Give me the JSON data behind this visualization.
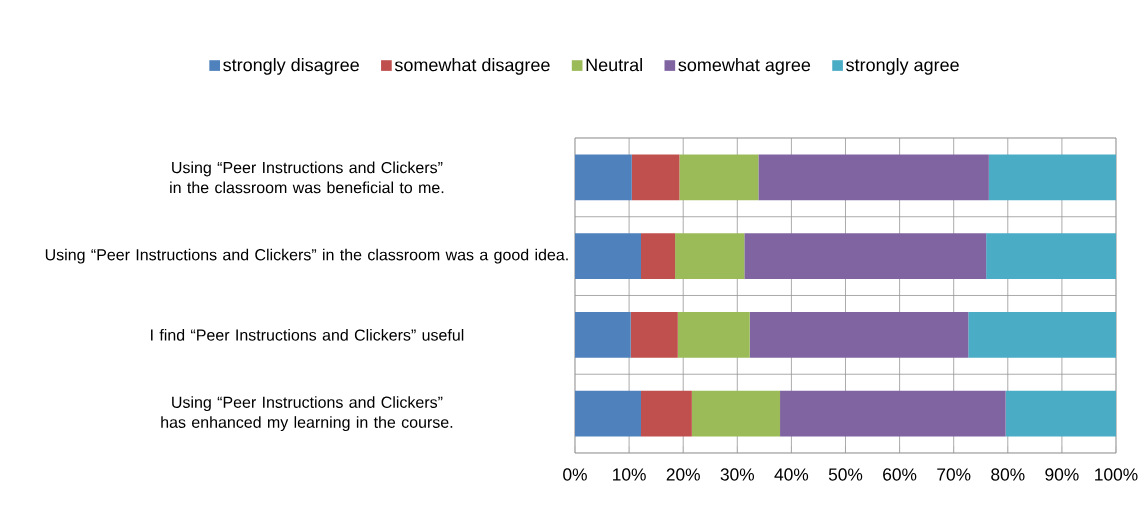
{
  "chart_data": {
    "type": "bar",
    "orientation": "horizontal",
    "stacked": true,
    "categories": [
      "Using “Peer Instructions and Clickers” in the classroom was beneficial to me.",
      "Using “Peer Instructions and Clickers” in the classroom was a good idea.",
      "I find “Peer Instructions and Clickers” useful",
      "Using “Peer Instructions and Clickers” has enhanced my learning in the course."
    ],
    "series": [
      {
        "name": "strongly disagree",
        "color": "#4f81bd",
        "values": [
          10.5,
          12.2,
          10.3,
          12.2
        ]
      },
      {
        "name": "somewhat disagree",
        "color": "#c0504d",
        "values": [
          8.8,
          6.3,
          8.7,
          9.4
        ]
      },
      {
        "name": "Neutral",
        "color": "#9bbb59",
        "values": [
          14.6,
          12.8,
          13.3,
          16.3
        ]
      },
      {
        "name": "somewhat agree",
        "color": "#8064a2",
        "values": [
          42.6,
          44.7,
          40.4,
          41.7
        ]
      },
      {
        "name": "strongly agree",
        "color": "#4bacc6",
        "values": [
          23.5,
          24.0,
          27.3,
          20.4
        ]
      }
    ],
    "xlim": [
      0,
      100
    ],
    "xticks": [
      {
        "value": 0,
        "label": "0%"
      },
      {
        "value": 10,
        "label": "10%"
      },
      {
        "value": 20,
        "label": "20%"
      },
      {
        "value": 30,
        "label": "30%"
      },
      {
        "value": 40,
        "label": "40%"
      },
      {
        "value": 50,
        "label": "50%"
      },
      {
        "value": 60,
        "label": "60%"
      },
      {
        "value": 70,
        "label": "70%"
      },
      {
        "value": 80,
        "label": "80%"
      },
      {
        "value": 90,
        "label": "90%"
      },
      {
        "value": 100,
        "label": "100%"
      }
    ],
    "grid": true,
    "legend": "top"
  }
}
